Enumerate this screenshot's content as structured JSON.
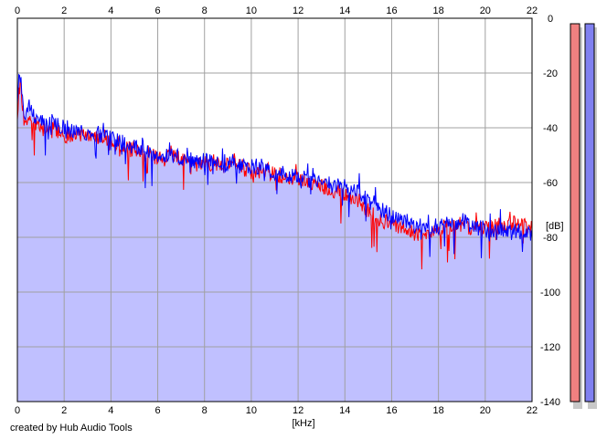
{
  "footer": {
    "credit": "created by Hub Audio Tools"
  },
  "chart_data": {
    "type": "area",
    "xlabel": "[kHz]",
    "ylabel": "[dB]",
    "xlim": [
      0,
      22
    ],
    "ylim": [
      -140,
      0
    ],
    "x_ticks": [
      0,
      2,
      4,
      6,
      8,
      10,
      12,
      14,
      16,
      18,
      20,
      22
    ],
    "x_tick_labels": [
      "0",
      "2",
      "4",
      "6",
      "8",
      "10",
      "12",
      "14",
      "16",
      "18",
      "20",
      "22"
    ],
    "y_ticks": [
      0,
      -20,
      -40,
      -60,
      -80,
      -100,
      -120,
      -140
    ],
    "y_tick_labels": [
      "0",
      "-20",
      "-40",
      "-60",
      "-80",
      "-100",
      "-120",
      "-140"
    ],
    "grid": true,
    "fill_color": "#c0c0ff",
    "series": [
      {
        "color": "#ff0000",
        "x": [
          0,
          0.1,
          0.2,
          0.3,
          0.5,
          0.7,
          1,
          1.3,
          1.6,
          2,
          2.5,
          3,
          3.5,
          4,
          4.5,
          5,
          5.5,
          6,
          6.5,
          7,
          7.5,
          8,
          8.5,
          9,
          9.5,
          10,
          10.5,
          11,
          11.5,
          12,
          12.5,
          13,
          13.5,
          14,
          14.5,
          15,
          15.5,
          16,
          16.5,
          17,
          17.5,
          18,
          18.5,
          19,
          19.5,
          20,
          20.5,
          21,
          21.5,
          22
        ],
        "y": [
          -38,
          -20,
          -30,
          -38,
          -35,
          -38,
          -40,
          -42,
          -40,
          -43,
          -43,
          -43,
          -44,
          -46,
          -46,
          -48,
          -50,
          -51,
          -51,
          -51,
          -53,
          -53,
          -54,
          -54,
          -54,
          -56,
          -56,
          -57,
          -58,
          -58,
          -60,
          -61,
          -63,
          -64,
          -66,
          -70,
          -74,
          -75,
          -77,
          -79,
          -78,
          -77,
          -76,
          -75,
          -77,
          -77,
          -76,
          -75,
          -75,
          -76
        ]
      },
      {
        "color": "#0000ff",
        "x": [
          0,
          0.1,
          0.2,
          0.3,
          0.5,
          0.7,
          1,
          1.3,
          1.6,
          2,
          2.5,
          3,
          3.5,
          4,
          4.5,
          5,
          5.5,
          6,
          6.5,
          7,
          7.5,
          8,
          8.5,
          9,
          9.5,
          10,
          10.5,
          11,
          11.5,
          12,
          12.5,
          13,
          13.5,
          14,
          14.5,
          15,
          15.5,
          16,
          16.5,
          17,
          17.5,
          18,
          18.5,
          19,
          19.5,
          20,
          20.5,
          21,
          21.5,
          22
        ],
        "y": [
          -30,
          -18,
          -28,
          -35,
          -32,
          -36,
          -38,
          -38,
          -38,
          -40,
          -41,
          -42,
          -43,
          -44,
          -45,
          -47,
          -48,
          -50,
          -50,
          -51,
          -52,
          -52,
          -53,
          -53,
          -54,
          -54,
          -54,
          -56,
          -57,
          -58,
          -59,
          -60,
          -61,
          -61,
          -63,
          -67,
          -70,
          -72,
          -73,
          -76,
          -76,
          -76,
          -75,
          -74,
          -76,
          -77,
          -78,
          -78,
          -78,
          -79
        ]
      }
    ],
    "level_meters": [
      {
        "color": "#f08080"
      },
      {
        "color": "#8080f0"
      }
    ]
  }
}
